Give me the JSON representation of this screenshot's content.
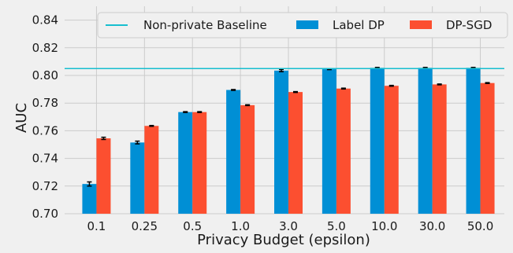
{
  "chart_data": {
    "type": "bar",
    "xlabel": "Privacy Budget (epsilon)",
    "ylabel": "AUC",
    "categories": [
      "0.1",
      "0.25",
      "0.5",
      "1.0",
      "3.0",
      "5.0",
      "10.0",
      "30.0",
      "50.0"
    ],
    "series": [
      {
        "name": "Label DP",
        "color": "#008fd5",
        "values": [
          0.7215,
          0.7515,
          0.7735,
          0.7895,
          0.8035,
          0.8045,
          0.8055,
          0.8055,
          0.8055
        ],
        "errors": [
          0.0015,
          0.001,
          0.0003,
          0.0003,
          0.0008,
          0.0003,
          0.0003,
          0.0003,
          0.0003
        ]
      },
      {
        "name": "DP-SGD",
        "color": "#fc4f30",
        "values": [
          0.7545,
          0.7635,
          0.7735,
          0.7785,
          0.788,
          0.7905,
          0.7925,
          0.7935,
          0.7945
        ],
        "errors": [
          0.0008,
          0.0003,
          0.0003,
          0.0003,
          0.0003,
          0.0003,
          0.0003,
          0.0003,
          0.0003
        ]
      }
    ],
    "baseline": {
      "name": "Non-private Baseline",
      "value": 0.805,
      "color": "#17becf"
    },
    "ylim": [
      0.7,
      0.85
    ],
    "yticks": [
      "0.70",
      "0.72",
      "0.74",
      "0.76",
      "0.78",
      "0.80",
      "0.82",
      "0.84"
    ],
    "grid": true,
    "legend_placement": "top-center"
  }
}
